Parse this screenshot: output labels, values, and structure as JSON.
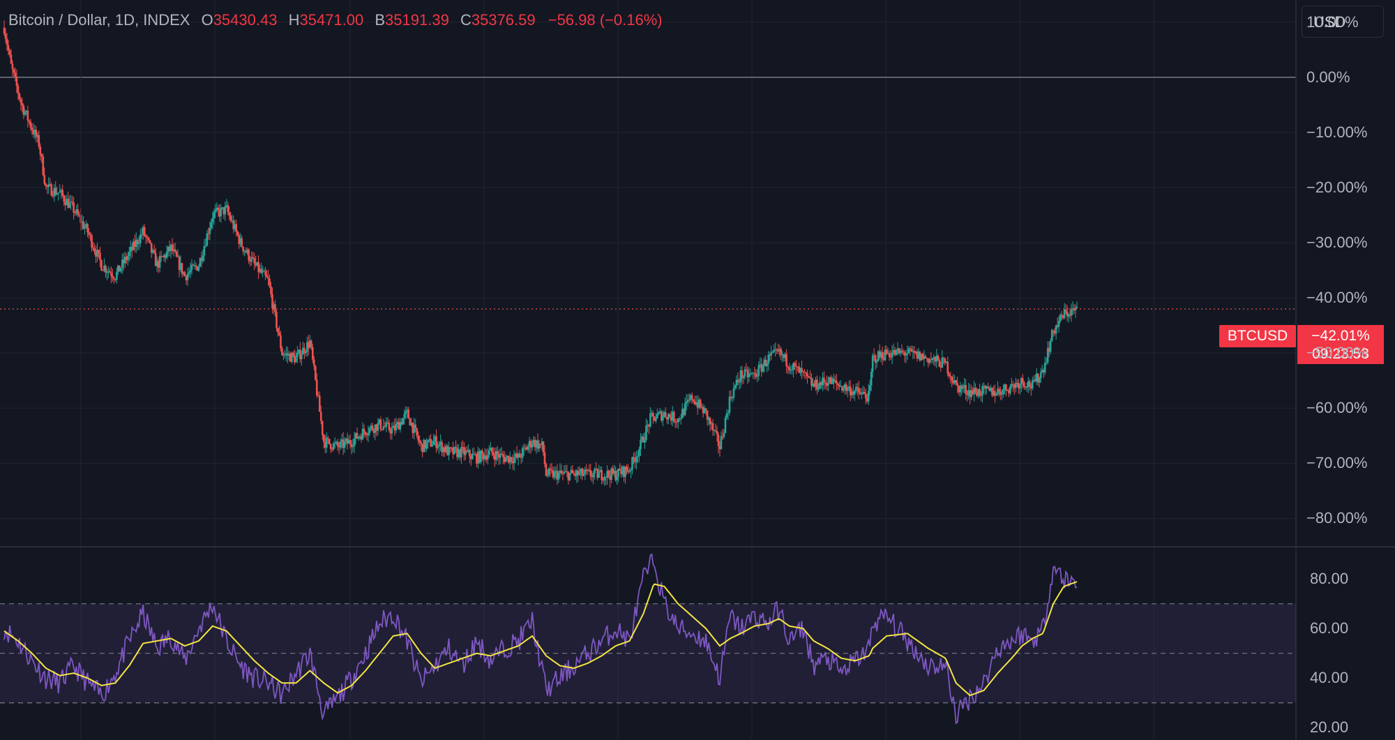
{
  "legend": {
    "symbol": "Bitcoin / Dollar, 1D, INDEX",
    "o_label": "O",
    "o_value": "35430.43",
    "h_label": "H",
    "h_value": "35471.00",
    "l_label": "B",
    "l_value": "35191.39",
    "c_label": "C",
    "c_value": "35376.59",
    "change": "−56.98 (−0.16%)"
  },
  "currency_button": "USD",
  "last_price": {
    "symbol_tag": "BTCUSD",
    "value": "−42.01%",
    "countdown": "09:23:53"
  },
  "colors": {
    "background": "#131722",
    "up": "#26a69a",
    "down": "#ef5350",
    "rsi": "#7e57c2",
    "rsi_ma": "#f5e543",
    "grid": "#1f2430"
  },
  "chart_data": [
    {
      "type": "candlestick",
      "title": "Bitcoin / Dollar, 1D, INDEX",
      "y_unit": "%",
      "ylim": [
        -85,
        14
      ],
      "y_ticks": [
        10,
        0,
        -10,
        -20,
        -30,
        -40,
        -50,
        -60,
        -70,
        -80
      ],
      "y_tick_labels": [
        "10.00%",
        "0.00%",
        "−10.00%",
        "−20.00%",
        "−30.00%",
        "−40.00%",
        "−50.00%",
        "−60.00%",
        "−70.00%",
        "−80.00%"
      ],
      "grid": true,
      "baseline": 0,
      "last_value": -42.01,
      "path_anchors": [
        [
          0,
          9
        ],
        [
          10,
          2
        ],
        [
          25,
          -5
        ],
        [
          50,
          -12
        ],
        [
          60,
          -20
        ],
        [
          80,
          -21
        ],
        [
          100,
          -24
        ],
        [
          120,
          -28
        ],
        [
          140,
          -34
        ],
        [
          160,
          -36
        ],
        [
          180,
          -32
        ],
        [
          200,
          -28
        ],
        [
          220,
          -34
        ],
        [
          240,
          -31
        ],
        [
          260,
          -36
        ],
        [
          280,
          -34
        ],
        [
          300,
          -25
        ],
        [
          320,
          -24
        ],
        [
          340,
          -30
        ],
        [
          360,
          -34
        ],
        [
          380,
          -37
        ],
        [
          400,
          -50
        ],
        [
          420,
          -51
        ],
        [
          440,
          -48
        ],
        [
          460,
          -66
        ],
        [
          480,
          -67
        ],
        [
          500,
          -66
        ],
        [
          520,
          -64
        ],
        [
          540,
          -63
        ],
        [
          560,
          -64
        ],
        [
          580,
          -61
        ],
        [
          600,
          -67
        ],
        [
          620,
          -66
        ],
        [
          640,
          -68
        ],
        [
          660,
          -68
        ],
        [
          680,
          -69
        ],
        [
          700,
          -68
        ],
        [
          720,
          -69
        ],
        [
          740,
          -69
        ],
        [
          760,
          -66
        ],
        [
          775,
          -67
        ],
        [
          780,
          -72
        ],
        [
          800,
          -72
        ],
        [
          820,
          -72
        ],
        [
          840,
          -72
        ],
        [
          860,
          -72
        ],
        [
          880,
          -72
        ],
        [
          900,
          -71
        ],
        [
          915,
          -67
        ],
        [
          930,
          -62
        ],
        [
          950,
          -61
        ],
        [
          970,
          -62
        ],
        [
          990,
          -58
        ],
        [
          1010,
          -61
        ],
        [
          1030,
          -67
        ],
        [
          1045,
          -58
        ],
        [
          1060,
          -54
        ],
        [
          1080,
          -54
        ],
        [
          1100,
          -51
        ],
        [
          1115,
          -50
        ],
        [
          1130,
          -52
        ],
        [
          1150,
          -54
        ],
        [
          1165,
          -56
        ],
        [
          1185,
          -55
        ],
        [
          1205,
          -56
        ],
        [
          1225,
          -57
        ],
        [
          1245,
          -58
        ],
        [
          1250,
          -51
        ],
        [
          1270,
          -50
        ],
        [
          1300,
          -50
        ],
        [
          1330,
          -51
        ],
        [
          1355,
          -52
        ],
        [
          1370,
          -56
        ],
        [
          1390,
          -57
        ],
        [
          1410,
          -57
        ],
        [
          1430,
          -57
        ],
        [
          1450,
          -56
        ],
        [
          1465,
          -55
        ],
        [
          1480,
          -56
        ],
        [
          1495,
          -53
        ],
        [
          1510,
          -46
        ],
        [
          1525,
          -43
        ],
        [
          1545,
          -42
        ]
      ]
    },
    {
      "type": "line",
      "series": [
        {
          "values": [
            [
              0,
              60
            ],
            [
              20,
              55
            ],
            [
              40,
              47
            ],
            [
              60,
              40
            ],
            [
              80,
              38
            ],
            [
              100,
              45
            ],
            [
              120,
              38
            ],
            [
              140,
              33
            ],
            [
              160,
              42
            ],
            [
              180,
              55
            ],
            [
              200,
              66
            ],
            [
              220,
              52
            ],
            [
              240,
              57
            ],
            [
              260,
              47
            ],
            [
              280,
              60
            ],
            [
              300,
              70
            ],
            [
              320,
              55
            ],
            [
              340,
              45
            ],
            [
              360,
              40
            ],
            [
              380,
              38
            ],
            [
              400,
              33
            ],
            [
              420,
              42
            ],
            [
              440,
              50
            ],
            [
              460,
              25
            ],
            [
              480,
              32
            ],
            [
              500,
              40
            ],
            [
              520,
              50
            ],
            [
              540,
              62
            ],
            [
              560,
              66
            ],
            [
              580,
              55
            ],
            [
              600,
              38
            ],
            [
              620,
              45
            ],
            [
              640,
              52
            ],
            [
              660,
              45
            ],
            [
              680,
              55
            ],
            [
              700,
              47
            ],
            [
              720,
              52
            ],
            [
              740,
              55
            ],
            [
              760,
              63
            ],
            [
              780,
              35
            ],
            [
              800,
              40
            ],
            [
              820,
              45
            ],
            [
              840,
              50
            ],
            [
              860,
              55
            ],
            [
              880,
              60
            ],
            [
              900,
              55
            ],
            [
              920,
              80
            ],
            [
              935,
              88
            ],
            [
              950,
              70
            ],
            [
              970,
              60
            ],
            [
              990,
              58
            ],
            [
              1010,
              55
            ],
            [
              1030,
              40
            ],
            [
              1045,
              65
            ],
            [
              1060,
              60
            ],
            [
              1080,
              65
            ],
            [
              1100,
              62
            ],
            [
              1115,
              68
            ],
            [
              1130,
              55
            ],
            [
              1150,
              60
            ],
            [
              1165,
              45
            ],
            [
              1185,
              48
            ],
            [
              1205,
              42
            ],
            [
              1225,
              47
            ],
            [
              1245,
              52
            ],
            [
              1250,
              62
            ],
            [
              1270,
              65
            ],
            [
              1300,
              55
            ],
            [
              1330,
              45
            ],
            [
              1355,
              45
            ],
            [
              1370,
              25
            ],
            [
              1390,
              32
            ],
            [
              1410,
              38
            ],
            [
              1430,
              52
            ],
            [
              1450,
              55
            ],
            [
              1465,
              58
            ],
            [
              1480,
              55
            ],
            [
              1495,
              60
            ],
            [
              1510,
              85
            ],
            [
              1525,
              80
            ],
            [
              1545,
              78
            ]
          ]
        },
        {
          "values": [
            [
              0,
              59
            ],
            [
              20,
              55
            ],
            [
              40,
              50
            ],
            [
              60,
              44
            ],
            [
              80,
              41
            ],
            [
              100,
              42
            ],
            [
              120,
              40
            ],
            [
              140,
              37
            ],
            [
              160,
              38
            ],
            [
              180,
              45
            ],
            [
              200,
              54
            ],
            [
              220,
              55
            ],
            [
              240,
              56
            ],
            [
              260,
              53
            ],
            [
              280,
              55
            ],
            [
              300,
              61
            ],
            [
              320,
              59
            ],
            [
              340,
              53
            ],
            [
              360,
              47
            ],
            [
              380,
              42
            ],
            [
              400,
              38
            ],
            [
              420,
              38
            ],
            [
              440,
              43
            ],
            [
              460,
              38
            ],
            [
              480,
              34
            ],
            [
              500,
              37
            ],
            [
              520,
              43
            ],
            [
              540,
              50
            ],
            [
              560,
              57
            ],
            [
              580,
              58
            ],
            [
              600,
              50
            ],
            [
              620,
              44
            ],
            [
              640,
              46
            ],
            [
              660,
              48
            ],
            [
              680,
              50
            ],
            [
              700,
              49
            ],
            [
              720,
              51
            ],
            [
              740,
              53
            ],
            [
              760,
              57
            ],
            [
              780,
              49
            ],
            [
              800,
              45
            ],
            [
              820,
              44
            ],
            [
              840,
              46
            ],
            [
              860,
              49
            ],
            [
              880,
              53
            ],
            [
              900,
              55
            ],
            [
              920,
              66
            ],
            [
              935,
              78
            ],
            [
              950,
              77
            ],
            [
              970,
              70
            ],
            [
              990,
              65
            ],
            [
              1010,
              60
            ],
            [
              1030,
              53
            ],
            [
              1045,
              56
            ],
            [
              1060,
              58
            ],
            [
              1080,
              61
            ],
            [
              1100,
              62
            ],
            [
              1115,
              64
            ],
            [
              1130,
              61
            ],
            [
              1150,
              60
            ],
            [
              1165,
              55
            ],
            [
              1185,
              52
            ],
            [
              1205,
              48
            ],
            [
              1225,
              47
            ],
            [
              1245,
              49
            ],
            [
              1250,
              52
            ],
            [
              1270,
              57
            ],
            [
              1300,
              58
            ],
            [
              1330,
              52
            ],
            [
              1355,
              48
            ],
            [
              1370,
              38
            ],
            [
              1390,
              33
            ],
            [
              1410,
              35
            ],
            [
              1430,
              42
            ],
            [
              1450,
              48
            ],
            [
              1465,
              53
            ],
            [
              1480,
              56
            ],
            [
              1495,
              58
            ],
            [
              1510,
              70
            ],
            [
              1525,
              77
            ],
            [
              1545,
              79
            ]
          ]
        }
      ],
      "ylim": [
        15,
        93
      ],
      "y_ticks": [
        80,
        60,
        40,
        20
      ],
      "y_tick_labels": [
        "80.00",
        "60.00",
        "40.00",
        "20.00"
      ],
      "bands": [
        70,
        50,
        30
      ],
      "grid": true
    }
  ]
}
